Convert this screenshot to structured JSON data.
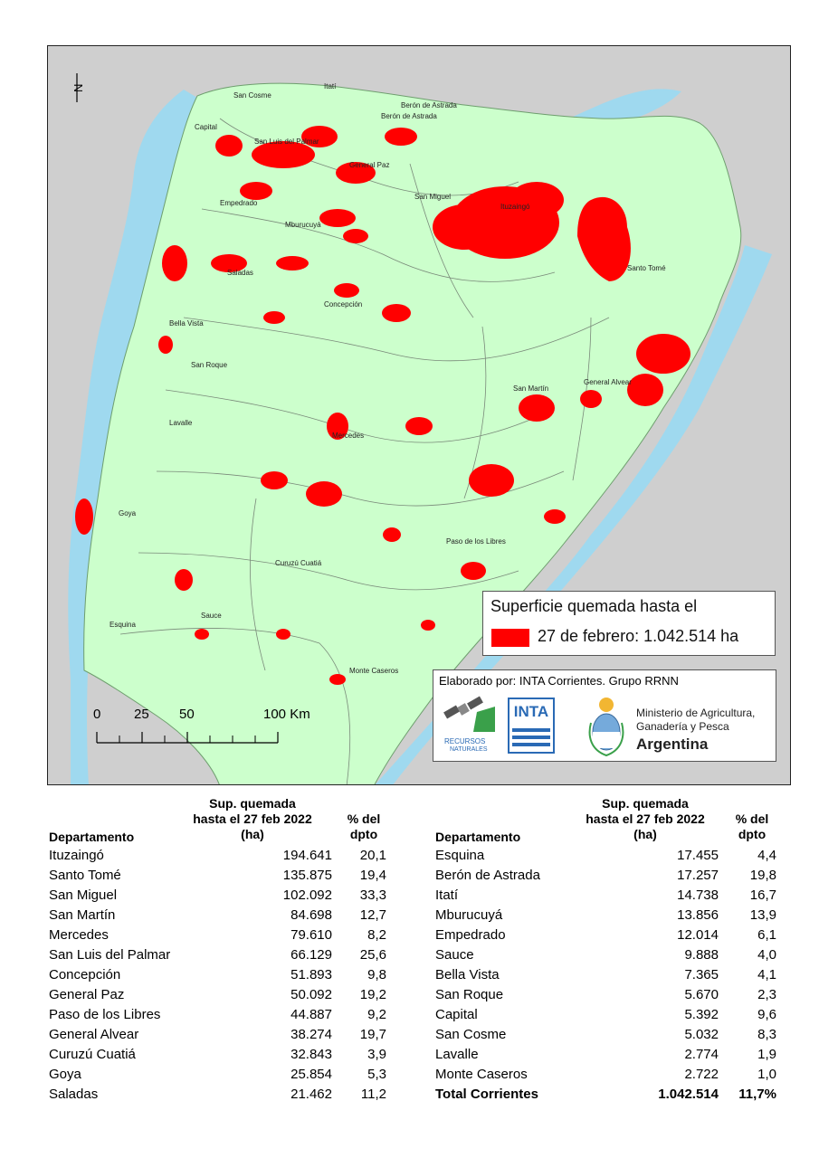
{
  "map": {
    "north_symbol": "N",
    "north_icon": "north-arrow-icon",
    "colors": {
      "land": "#ccffcc",
      "water": "#9fd9ef",
      "outside": "#d0d0d0",
      "burned": "#ff0000",
      "boundary": "#7a8a7a"
    },
    "labels": [
      {
        "name": "San Cosme"
      },
      {
        "name": "Itatí"
      },
      {
        "name": "Berón de Astrada"
      },
      {
        "name": "Berón de Astrada"
      },
      {
        "name": "Capital"
      },
      {
        "name": "San Luis del Palmar"
      },
      {
        "name": "General Paz"
      },
      {
        "name": "San Miguel"
      },
      {
        "name": "Ituzaingó"
      },
      {
        "name": "Empedrado"
      },
      {
        "name": "Mburucuyá"
      },
      {
        "name": "Santo Tomé"
      },
      {
        "name": "Saladas"
      },
      {
        "name": "Concepción"
      },
      {
        "name": "Bella Vista"
      },
      {
        "name": "San Roque"
      },
      {
        "name": "San Martín"
      },
      {
        "name": "General Alvear"
      },
      {
        "name": "Lavalle"
      },
      {
        "name": "Mercedes"
      },
      {
        "name": "Goya"
      },
      {
        "name": "Paso de los Libres"
      },
      {
        "name": "Curuzú Cuatiá"
      },
      {
        "name": "Sauce"
      },
      {
        "name": "Esquina"
      },
      {
        "name": "Monte Caseros"
      }
    ],
    "scale": {
      "ticks": [
        "0",
        "25",
        "50",
        "100 Km"
      ]
    },
    "legend": {
      "title": "Superficie quemada hasta el",
      "value": "27 de febrero: 1.042.514 ha"
    },
    "credits": {
      "text": "Elaborado por: INTA Corrientes. Grupo RRNN",
      "logo_rn_label": "RECURSOS",
      "logo_rn_label2": "NATURALES",
      "logo_inta": "INTA",
      "ministry_line1": "Ministerio de Agricultura,",
      "ministry_line2": "Ganadería y Pesca",
      "ministry_line3": "Argentina"
    }
  },
  "table": {
    "headers": {
      "dept": "Departamento",
      "sup1": "Sup. quemada",
      "sup2": "hasta el 27 feb 2022",
      "sup3": "(ha)",
      "pct1": "% del",
      "pct2": "dpto"
    },
    "left": [
      {
        "name": "Ituzaingó",
        "ha": "194.641",
        "pct": "20,1"
      },
      {
        "name": "Santo Tomé",
        "ha": "135.875",
        "pct": "19,4"
      },
      {
        "name": "San Miguel",
        "ha": "102.092",
        "pct": "33,3"
      },
      {
        "name": "San Martín",
        "ha": "84.698",
        "pct": "12,7"
      },
      {
        "name": "Mercedes",
        "ha": "79.610",
        "pct": "8,2"
      },
      {
        "name": "San Luis del Palmar",
        "ha": "66.129",
        "pct": "25,6"
      },
      {
        "name": "Concepción",
        "ha": "51.893",
        "pct": "9,8"
      },
      {
        "name": "General Paz",
        "ha": "50.092",
        "pct": "19,2"
      },
      {
        "name": "Paso de los Libres",
        "ha": "44.887",
        "pct": "9,2"
      },
      {
        "name": "General Alvear",
        "ha": "38.274",
        "pct": "19,7"
      },
      {
        "name": "Curuzú Cuatiá",
        "ha": "32.843",
        "pct": "3,9"
      },
      {
        "name": "Goya",
        "ha": "25.854",
        "pct": "5,3"
      },
      {
        "name": "Saladas",
        "ha": "21.462",
        "pct": "11,2"
      }
    ],
    "right": [
      {
        "name": "Esquina",
        "ha": "17.455",
        "pct": "4,4"
      },
      {
        "name": "Berón de Astrada",
        "ha": "17.257",
        "pct": "19,8"
      },
      {
        "name": "Itatí",
        "ha": "14.738",
        "pct": "16,7"
      },
      {
        "name": "Mburucuyá",
        "ha": "13.856",
        "pct": "13,9"
      },
      {
        "name": "Empedrado",
        "ha": "12.014",
        "pct": "6,1"
      },
      {
        "name": "Sauce",
        "ha": "9.888",
        "pct": "4,0"
      },
      {
        "name": "Bella Vista",
        "ha": "7.365",
        "pct": "4,1"
      },
      {
        "name": "San Roque",
        "ha": "5.670",
        "pct": "2,3"
      },
      {
        "name": "Capital",
        "ha": "5.392",
        "pct": "9,6"
      },
      {
        "name": "San Cosme",
        "ha": "5.032",
        "pct": "8,3"
      },
      {
        "name": "Lavalle",
        "ha": "2.774",
        "pct": "1,9"
      },
      {
        "name": "Monte Caseros",
        "ha": "2.722",
        "pct": "1,0"
      }
    ],
    "total": {
      "name": "Total Corrientes",
      "ha": "1.042.514",
      "pct": "11,7%"
    }
  }
}
